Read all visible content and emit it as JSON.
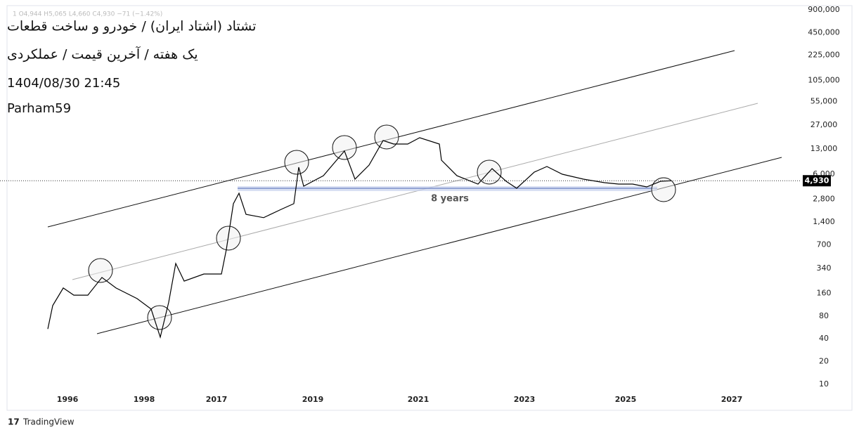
{
  "chart_data": {
    "type": "line",
    "log_scale": true,
    "title": "تشتاد (اشتاد ایران) / خودرو و ساخت قطعات",
    "subtitle": "یک هفته / آخرین قیمت / عملکردی",
    "date": "1404/08/30 21:45",
    "author": "Parham59",
    "ohlc_text": "1  O4,944  H5,065  L4,660  C4,930  −71 (−1.42%)",
    "annotation": "8 years",
    "brand": "TradingView",
    "x": [
      58,
      65,
      80,
      95,
      115,
      135,
      155,
      185,
      205,
      218,
      230,
      240,
      252,
      280,
      305,
      312,
      322,
      330,
      340,
      365,
      390,
      408,
      415,
      422,
      450,
      480,
      495,
      515,
      535,
      550,
      570,
      587,
      615,
      618,
      640,
      670,
      690,
      710,
      725,
      750,
      768,
      790,
      820,
      850,
      870,
      890,
      910,
      930,
      945
    ],
    "series": [
      {
        "name": "تشتاد",
        "color": "#000000",
        "values": [
          54,
          110,
          188,
          151,
          151,
          259,
          188,
          136,
          99,
          42,
          122,
          397,
          232,
          288,
          288,
          608,
          2445,
          3370,
          1770,
          1600,
          2060,
          2450,
          7450,
          4180,
          5750,
          12200,
          5170,
          7940,
          16800,
          15100,
          15100,
          18300,
          15100,
          9220,
          5750,
          4450,
          7130,
          4850,
          3920,
          6410,
          7600,
          6010,
          5170,
          4650,
          4450,
          4450,
          4090,
          4850,
          4930
        ]
      }
    ],
    "last_price": {
      "value": 4930,
      "label": "4,930"
    },
    "xlim": [
      0,
      1120
    ],
    "xticks": [
      {
        "value": 86,
        "label": "1996"
      },
      {
        "value": 195,
        "label": "1998"
      },
      {
        "value": 298,
        "label": "2017"
      },
      {
        "value": 435,
        "label": "2019"
      },
      {
        "value": 585,
        "label": "2021"
      },
      {
        "value": 736,
        "label": "2023"
      },
      {
        "value": 880,
        "label": "2025"
      },
      {
        "value": 1031,
        "label": "2027"
      }
    ],
    "ylim": [
      7.9,
      1213000
    ],
    "yticks": [
      10,
      20,
      40,
      80,
      160,
      340,
      700,
      {
        "value": 1400,
        "label": "1,400"
      },
      {
        "value": 2800,
        "label": "2,800"
      },
      {
        "value": 6000,
        "label": "6,000"
      },
      {
        "value": 13000,
        "label": "13,000"
      },
      {
        "value": 27000,
        "label": "27,000"
      },
      {
        "value": 55000,
        "label": "55,000"
      },
      {
        "value": 105000,
        "label": "105,000"
      },
      {
        "value": 225000,
        "label": "225,000"
      },
      {
        "value": 450000,
        "label": "450,000"
      },
      {
        "value": 900000,
        "label": "900,000"
      }
    ]
  }
}
